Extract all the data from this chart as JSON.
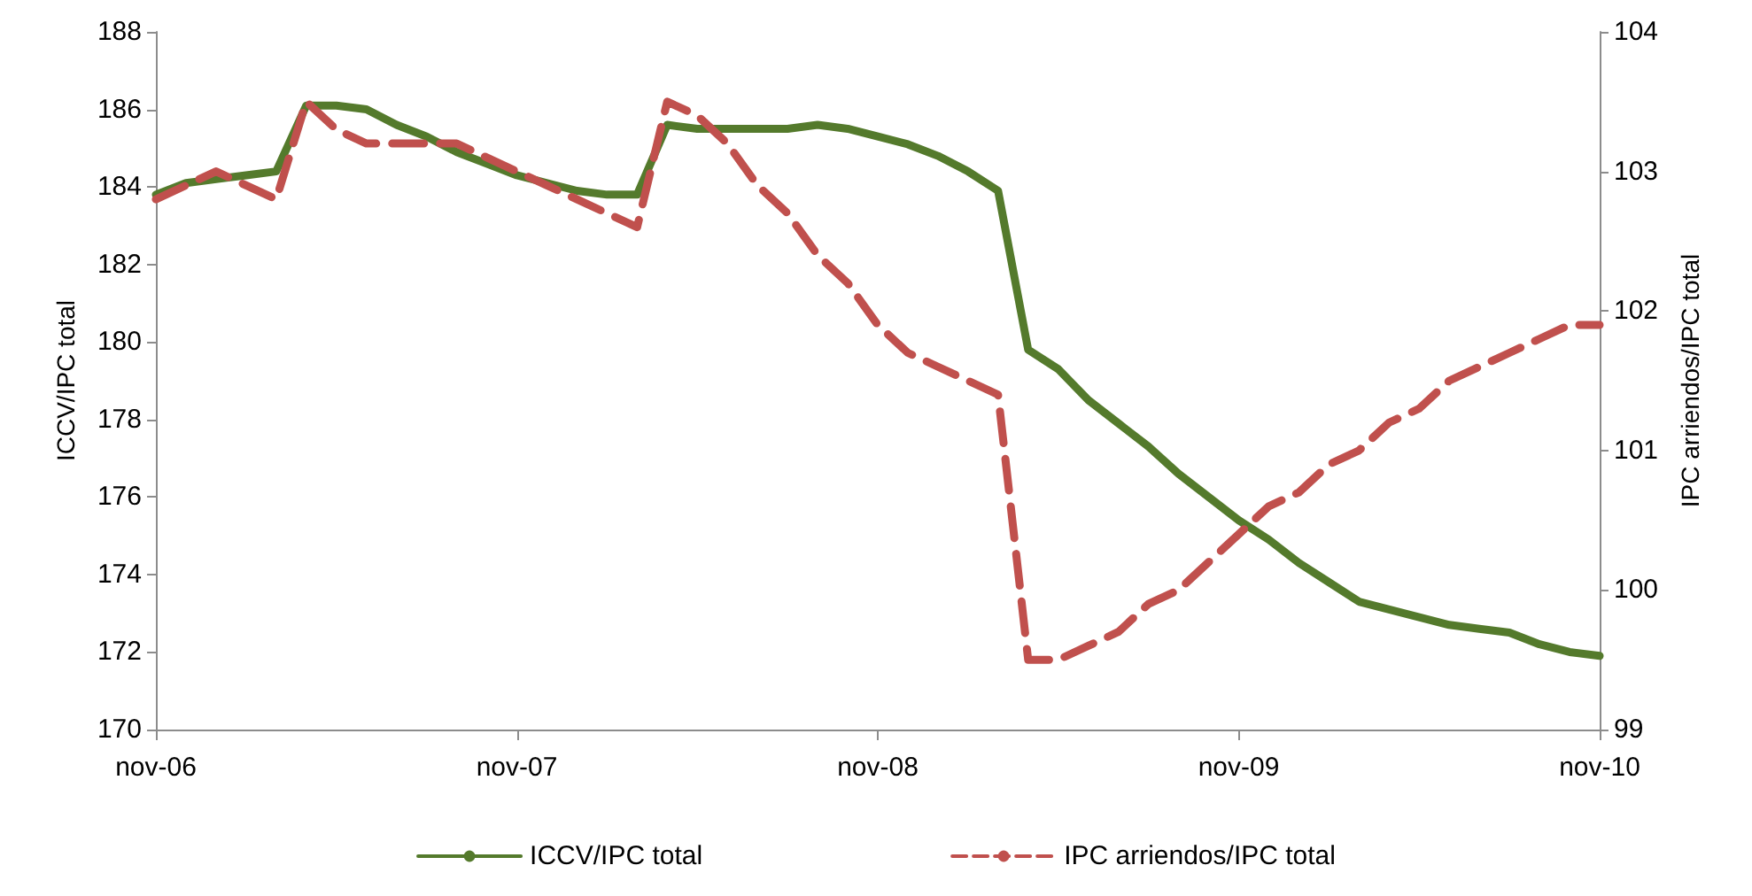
{
  "chart_data": {
    "type": "line",
    "ylabel": "ICCV/IPC total",
    "y2label": "IPC arriendos/IPC total",
    "categories": [
      "nov-06",
      null,
      null,
      null,
      null,
      null,
      null,
      null,
      null,
      null,
      null,
      null,
      "nov-07",
      null,
      null,
      null,
      null,
      null,
      null,
      null,
      null,
      null,
      null,
      null,
      "nov-08",
      null,
      null,
      null,
      null,
      null,
      null,
      null,
      null,
      null,
      null,
      null,
      "nov-09",
      null,
      null,
      null,
      null,
      null,
      null,
      null,
      null,
      null,
      null,
      null,
      "nov-10"
    ],
    "series": [
      {
        "name": "ICCV/IPC total",
        "color": "#547a2c",
        "line_style": "solid",
        "values": [
          183.8,
          184.1,
          184.2,
          184.3,
          184.4,
          186.1,
          186.1,
          186.0,
          185.6,
          185.3,
          184.9,
          184.6,
          184.3,
          184.1,
          183.9,
          183.8,
          183.8,
          185.6,
          185.5,
          185.5,
          185.5,
          185.5,
          185.6,
          185.5,
          185.3,
          185.1,
          184.8,
          184.4,
          183.9,
          179.8,
          179.3,
          178.5,
          177.9,
          177.3,
          176.6,
          176.0,
          175.4,
          174.9,
          174.3,
          173.8,
          173.3,
          173.1,
          172.9,
          172.7,
          172.6,
          172.5,
          172.2,
          172.0,
          171.9
        ]
      },
      {
        "name": "IPC arriendos/IPC total",
        "color": "#c0504d",
        "line_style": "dashed",
        "axis": "y2",
        "values": [
          102.8,
          102.9,
          103.0,
          102.9,
          102.8,
          103.5,
          103.3,
          103.2,
          103.2,
          103.2,
          103.2,
          103.1,
          103.0,
          102.9,
          102.8,
          102.7,
          102.6,
          103.5,
          103.4,
          103.2,
          102.9,
          102.7,
          102.4,
          102.2,
          101.9,
          101.7,
          101.6,
          101.5,
          101.4,
          99.5,
          99.5,
          99.6,
          99.7,
          99.9,
          100.0,
          100.2,
          100.4,
          100.6,
          100.7,
          100.9,
          101.0,
          101.2,
          101.3,
          101.5,
          101.6,
          101.7,
          101.8,
          101.9,
          101.9
        ]
      }
    ],
    "ylim": [
      170,
      188
    ],
    "yticks": [
      170,
      172,
      174,
      176,
      178,
      180,
      182,
      184,
      186,
      188
    ],
    "y2lim": [
      99,
      104
    ],
    "y2ticks": [
      99,
      100,
      101,
      102,
      103,
      104
    ],
    "grid": false,
    "legend": "bottom",
    "marker": "none"
  }
}
